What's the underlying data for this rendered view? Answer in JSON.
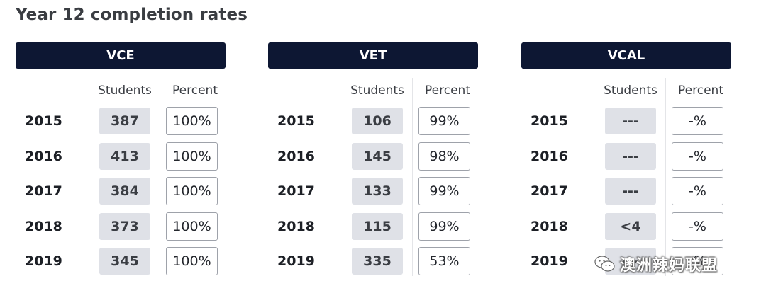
{
  "title": "Year 12 completion rates",
  "columns": {
    "students": "Students",
    "percent": "Percent"
  },
  "panels": [
    {
      "name": "VCE",
      "rows": [
        {
          "year": "2015",
          "students": "387",
          "percent": "100%"
        },
        {
          "year": "2016",
          "students": "413",
          "percent": "100%"
        },
        {
          "year": "2017",
          "students": "384",
          "percent": "100%"
        },
        {
          "year": "2018",
          "students": "373",
          "percent": "100%"
        },
        {
          "year": "2019",
          "students": "345",
          "percent": "100%"
        }
      ]
    },
    {
      "name": "VET",
      "rows": [
        {
          "year": "2015",
          "students": "106",
          "percent": "99%"
        },
        {
          "year": "2016",
          "students": "145",
          "percent": "98%"
        },
        {
          "year": "2017",
          "students": "133",
          "percent": "99%"
        },
        {
          "year": "2018",
          "students": "115",
          "percent": "99%"
        },
        {
          "year": "2019",
          "students": "335",
          "percent": "53%"
        }
      ]
    },
    {
      "name": "VCAL",
      "rows": [
        {
          "year": "2015",
          "students": "---",
          "percent": "-%"
        },
        {
          "year": "2016",
          "students": "---",
          "percent": "-%"
        },
        {
          "year": "2017",
          "students": "---",
          "percent": "-%"
        },
        {
          "year": "2018",
          "students": "<4",
          "percent": "-%"
        },
        {
          "year": "2019",
          "students": "---",
          "percent": "-%"
        }
      ]
    }
  ],
  "watermark": {
    "text": "澳洲辣妈联盟",
    "icon": "wechat-icon"
  },
  "colors": {
    "header_bg": "#0d1733",
    "students_cell_bg": "#dfe1e7",
    "percent_cell_border": "#9ea2aa"
  }
}
